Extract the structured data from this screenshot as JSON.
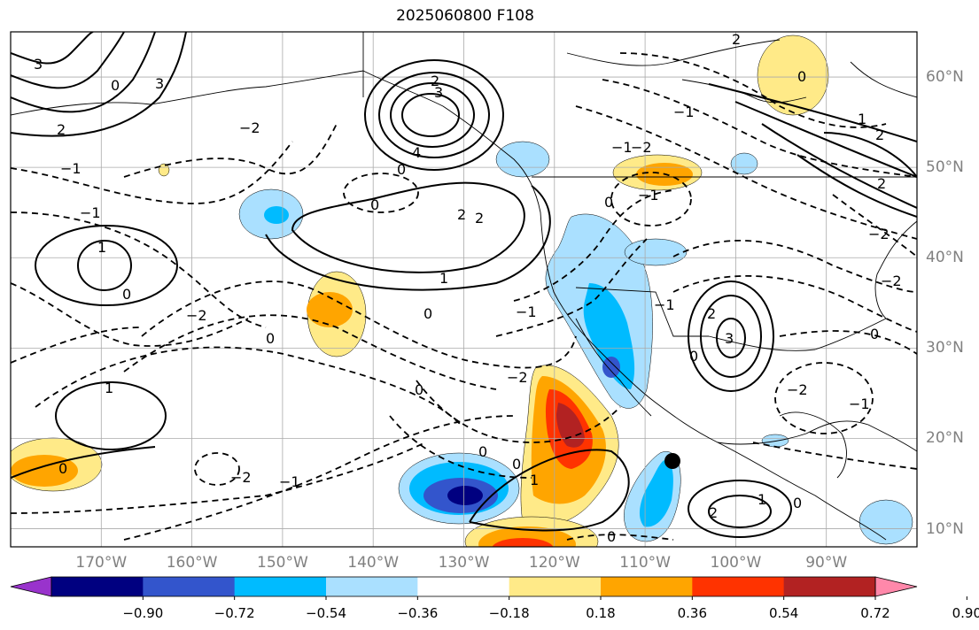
{
  "title": "2025060800 F108",
  "map": {
    "projection": "equirectangular",
    "lon_range": [
      -180,
      -80
    ],
    "lat_range": [
      8,
      65
    ],
    "grid": true,
    "lon_labels": [
      "170°W",
      "160°W",
      "150°W",
      "140°W",
      "130°W",
      "120°W",
      "110°W",
      "100°W",
      "90°W"
    ],
    "lat_labels": [
      "60°N",
      "50°N",
      "40°N",
      "30°N",
      "20°N",
      "10°N"
    ],
    "marker": {
      "label": "black dot",
      "lon": -107,
      "lat": 17.5
    }
  },
  "colorbar": {
    "labels": [
      "−0.90",
      "−0.72",
      "−0.54",
      "−0.36",
      "−0.18",
      "0.18",
      "0.36",
      "0.54",
      "0.72",
      "0.90"
    ],
    "colors": [
      "#9933cc",
      "#000080",
      "#3355cc",
      "#00bbff",
      "#aae0ff",
      "#ffffff",
      "#ffea88",
      "#ffa500",
      "#ff3300",
      "#b22222",
      "#ff88aa"
    ]
  },
  "contour_labels": [
    "4",
    "3",
    "2",
    "1",
    "0",
    "−1",
    "−2"
  ],
  "colors": {
    "land_border": "#000000",
    "grid": "#aaaaaa",
    "label_gray": "#808080"
  }
}
